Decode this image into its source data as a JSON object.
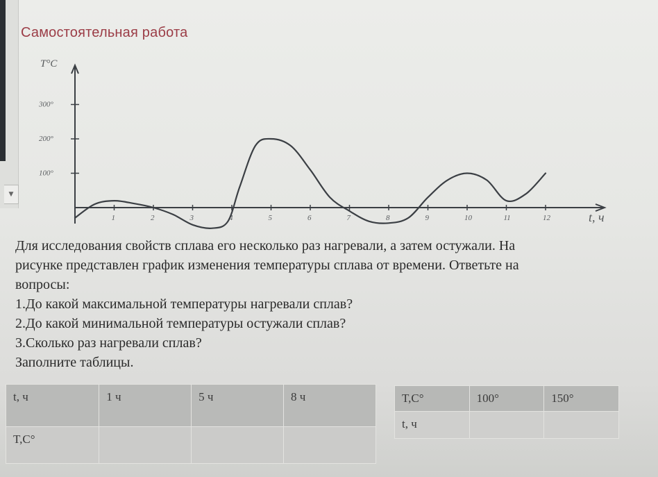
{
  "title": "Самостоятельная работа",
  "graph": {
    "y_axis_label": "T°C",
    "x_axis_label": "t, ч",
    "y_ticks": [
      "100°",
      "200°",
      "300°"
    ],
    "x_ticks": [
      "1",
      "2",
      "3",
      "4",
      "5",
      "6",
      "7",
      "8",
      "9",
      "10",
      "11",
      "12"
    ],
    "line_color": "#3b3f44"
  },
  "chart_data": {
    "type": "line",
    "xlabel": "t, ч",
    "ylabel": "T°C",
    "xlim": [
      0,
      12.5
    ],
    "ylim": [
      -60,
      330
    ],
    "grid": false,
    "x_ticks": [
      1,
      2,
      3,
      4,
      5,
      6,
      7,
      8,
      9,
      10,
      11,
      12
    ],
    "y_ticks": [
      100,
      200,
      300
    ],
    "series": [
      {
        "x": [
          0,
          0.5,
          1,
          1.5,
          2,
          2.5,
          3,
          3.5,
          3.9,
          4.2,
          4.6,
          5,
          5.5,
          6,
          6.5,
          7,
          7.5,
          8,
          8.5,
          9,
          9.5,
          10,
          10.5,
          11,
          11.5,
          12
        ],
        "values": [
          -30,
          10,
          20,
          12,
          0,
          -20,
          -50,
          -60,
          -40,
          60,
          180,
          200,
          180,
          110,
          30,
          -10,
          -40,
          -45,
          -30,
          30,
          80,
          100,
          80,
          20,
          40,
          100
        ]
      }
    ]
  },
  "task": {
    "lines": [
      "Для исследования свойств сплава его несколько раз нагревали, а затем остужали. На",
      "рисунке представлен график изменения температуры сплава от времени. Ответьте на",
      "вопросы:",
      "1.До какой максимальной температуры нагревали сплав?",
      "2.До какой минимальной температуры остужали сплав?",
      "3.Сколько раз нагревали сплав?",
      "Заполните таблицы."
    ]
  },
  "table_time": {
    "row_header_time": "t, ч",
    "row_header_temp": "T,C°",
    "times": [
      "1 ч",
      "5 ч",
      "8 ч"
    ]
  },
  "table_temp": {
    "row_header_temp": "T,C°",
    "row_header_time": "t, ч",
    "temps": [
      "100°",
      "150°"
    ]
  }
}
